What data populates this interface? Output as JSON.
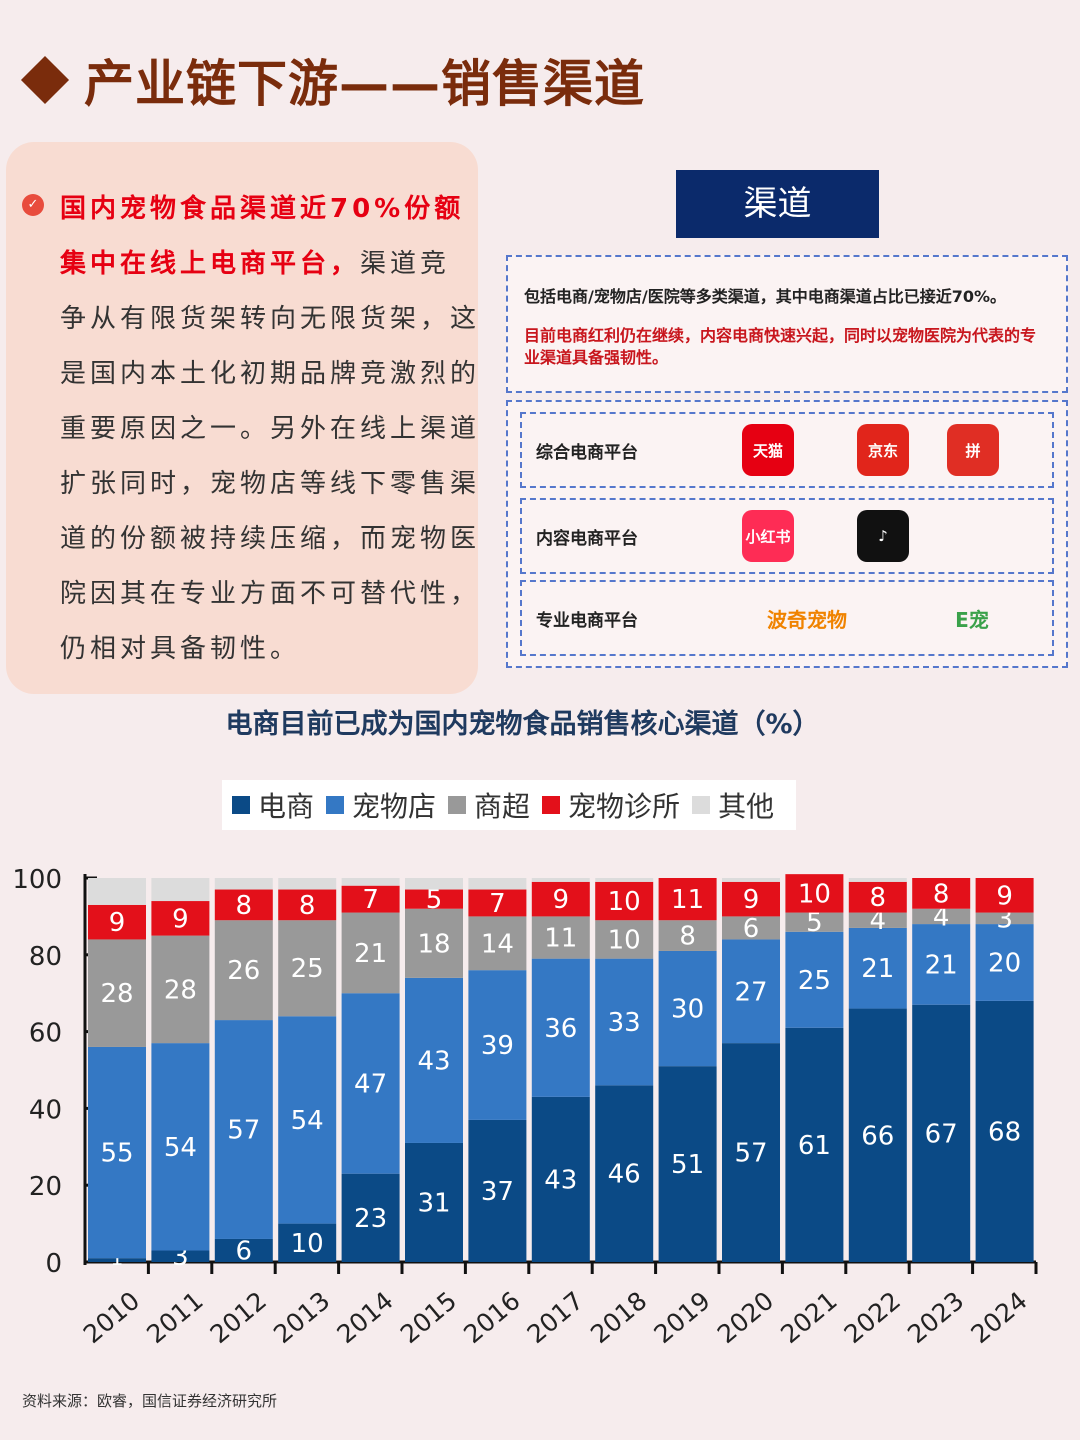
{
  "title": "产业链下游——销售渠道",
  "left_text": {
    "highlight": "国内宠物食品渠道近70%份额集中在线上电商平台，",
    "body": "渠道竞争从有限货架转向无限货架，这是国内本土化初期品牌竞激烈的重要原因之一。另外在线上渠道扩张同时，宠物店等线下零售渠道的份额被持续压缩，而宠物医院因其在专业方面不可替代性，仍相对具备韧性。"
  },
  "channels": {
    "title": "渠道",
    "desc_black": "包括电商/宠物店/医院等多类渠道，其中电商渠道占比已接近70%。",
    "desc_red": "目前电商红利仍在继续，内容电商快速兴起，同时以宠物医院为代表的专业渠道具备强韧性。",
    "rows": [
      {
        "label": "综合电商平台",
        "logos": [
          {
            "name": "tmall",
            "text": "天猫",
            "color": "#e60012"
          },
          {
            "name": "jd",
            "text": "京东",
            "color": "#e1251b"
          },
          {
            "name": "pinduoduo",
            "text": "拼",
            "color": "#e02e24"
          }
        ]
      },
      {
        "label": "内容电商平台",
        "logos": [
          {
            "name": "xiaohongshu",
            "text": "小红书",
            "color": "#fe2c55"
          },
          {
            "name": "douyin",
            "text": "♪",
            "color": "#111111"
          }
        ]
      },
      {
        "label": "专业电商平台",
        "logos": [
          {
            "name": "boqii",
            "text": "波奇宠物",
            "color": "#f08300"
          },
          {
            "name": "epet",
            "text": "E宠",
            "color": "#3aa14a"
          }
        ]
      }
    ]
  },
  "chart_data": {
    "type": "bar",
    "stacked": true,
    "title": "电商目前已成为国内宠物食品销售核心渠道（%）",
    "categories": [
      "2010",
      "2011",
      "2012",
      "2013",
      "2014",
      "2015",
      "2016",
      "2017",
      "2018",
      "2019",
      "2020",
      "2021",
      "2022",
      "2023",
      "2024"
    ],
    "ylim": [
      0,
      100
    ],
    "yticks": [
      0,
      20,
      40,
      60,
      80,
      100
    ],
    "legend_position": "top",
    "series": [
      {
        "name": "电商",
        "color": "#0b4a86",
        "values": [
          1,
          3,
          6,
          10,
          23,
          31,
          37,
          43,
          46,
          51,
          57,
          61,
          66,
          67,
          68
        ]
      },
      {
        "name": "宠物店",
        "color": "#3478c4",
        "values": [
          55,
          54,
          57,
          54,
          47,
          43,
          39,
          36,
          33,
          30,
          27,
          25,
          21,
          21,
          20
        ]
      },
      {
        "name": "商超",
        "color": "#999999",
        "values": [
          28,
          28,
          26,
          25,
          21,
          18,
          14,
          11,
          10,
          8,
          6,
          5,
          4,
          4,
          3
        ]
      },
      {
        "name": "宠物诊所",
        "color": "#e3101a",
        "values": [
          9,
          9,
          8,
          8,
          7,
          5,
          7,
          9,
          10,
          11,
          9,
          10,
          8,
          8,
          9
        ]
      },
      {
        "name": "其他",
        "color": "#dcdcdc",
        "values": [
          7,
          6,
          3,
          3,
          2,
          3,
          3,
          1,
          1,
          0,
          1,
          0,
          1,
          0,
          0
        ]
      }
    ]
  },
  "source": "资料来源：欧睿，国信证券经济研究所"
}
